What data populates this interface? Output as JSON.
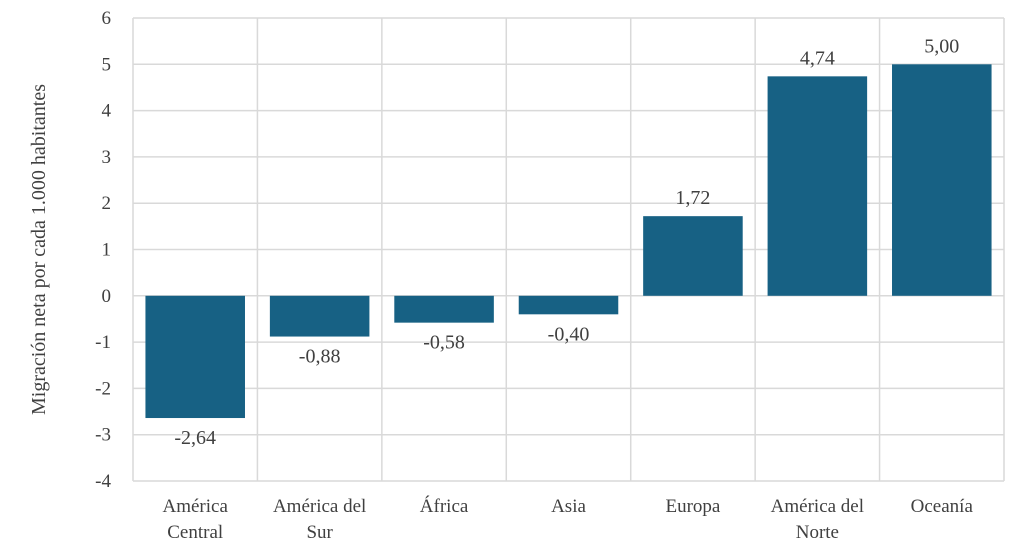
{
  "chart_data": {
    "type": "bar",
    "title": "",
    "xlabel": "",
    "ylabel": "Migración neta por cada 1.000 habitantes",
    "categories": [
      [
        "América",
        "Central"
      ],
      [
        "América del",
        "Sur"
      ],
      [
        "África"
      ],
      [
        "Asia"
      ],
      [
        "Europa"
      ],
      [
        "América del",
        "Norte"
      ],
      [
        "Oceanía"
      ]
    ],
    "values": [
      -2.64,
      -0.88,
      -0.58,
      -0.4,
      1.72,
      4.74,
      5.0
    ],
    "value_labels": [
      "-2,64",
      "-0,88",
      "-0,58",
      "-0,40",
      "1,72",
      "4,74",
      "5,00"
    ],
    "ylim": [
      -4,
      6
    ],
    "yticks": [
      -4,
      -3,
      -2,
      -1,
      0,
      1,
      2,
      3,
      4,
      5,
      6
    ],
    "grid": true,
    "bar_color": "#176184"
  }
}
